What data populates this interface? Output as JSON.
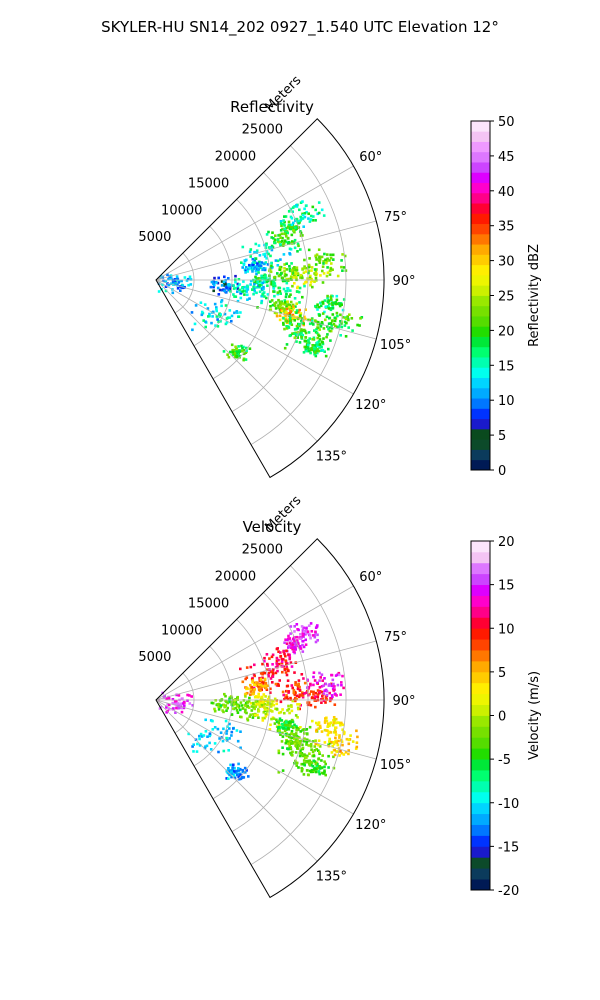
{
  "figure": {
    "suptitle": "SKYLER-HU  SN14_202  0927_1.540 UTC Elevation 12°"
  },
  "chart_data": [
    {
      "type": "heatmap",
      "subtype": "polar-sector",
      "title": "Reflectivity",
      "range_label": "Meters",
      "radial_ticks": [
        5000,
        10000,
        15000,
        20000,
        25000
      ],
      "angle_ticks": [
        "60°",
        "75°",
        "90°",
        "105°",
        "120°",
        "135°"
      ],
      "angle_tick_values": [
        60,
        75,
        90,
        105,
        120,
        135
      ],
      "sector_deg": [
        45,
        150
      ],
      "range_max": 30000,
      "grid": true,
      "colorbar": {
        "label": "Reflectivity dBZ",
        "min": 0,
        "max": 50,
        "ticks": [
          0,
          5,
          10,
          15,
          20,
          25,
          30,
          35,
          40,
          45,
          50
        ],
        "colors": [
          "#001a55",
          "#0b3b5c",
          "#0c4a2a",
          "#0a4a1e",
          "#1a1acc",
          "#0033ff",
          "#0077ff",
          "#00aaff",
          "#00d5ff",
          "#00ffee",
          "#00ffb0",
          "#00ff70",
          "#00e838",
          "#22dd00",
          "#55dd00",
          "#77e000",
          "#99e800",
          "#ccf000",
          "#eef500",
          "#ffee00",
          "#ffcc00",
          "#ffaa00",
          "#ff7700",
          "#ff4400",
          "#ff1a00",
          "#ff0033",
          "#ff0088",
          "#ff00cc",
          "#dd00ff",
          "#cc44ff",
          "#dd77ff",
          "#ee99ff",
          "#f4c4f4",
          "#fbe5fb"
        ]
      },
      "echo_cells": [
        {
          "az": 68,
          "r": 19000,
          "value": 20
        },
        {
          "az": 72,
          "r": 17500,
          "value": 20
        },
        {
          "az": 65,
          "r": 21000,
          "value": 16
        },
        {
          "az": 78,
          "r": 15000,
          "value": 14
        },
        {
          "az": 82,
          "r": 13000,
          "value": 12
        },
        {
          "az": 86,
          "r": 17000,
          "value": 22
        },
        {
          "az": 88,
          "r": 20000,
          "value": 25
        },
        {
          "az": 84,
          "r": 22000,
          "value": 22
        },
        {
          "az": 90,
          "r": 14000,
          "value": 18
        },
        {
          "az": 93,
          "r": 9000,
          "value": 9
        },
        {
          "az": 95,
          "r": 12000,
          "value": 14
        },
        {
          "az": 96,
          "r": 16000,
          "value": 18
        },
        {
          "az": 101,
          "r": 17000,
          "value": 22
        },
        {
          "az": 104,
          "r": 18500,
          "value": 30
        },
        {
          "az": 107,
          "r": 19500,
          "value": 20
        },
        {
          "az": 110,
          "r": 21000,
          "value": 20
        },
        {
          "az": 113,
          "r": 22500,
          "value": 18
        },
        {
          "az": 98,
          "r": 23000,
          "value": 18
        },
        {
          "az": 103,
          "r": 24500,
          "value": 20
        },
        {
          "az": 120,
          "r": 9000,
          "value": 14
        },
        {
          "az": 132,
          "r": 14000,
          "value": 20
        },
        {
          "az": 97,
          "r": 2500,
          "value": 12
        }
      ]
    },
    {
      "type": "heatmap",
      "subtype": "polar-sector",
      "title": "Velocity",
      "range_label": "Meters",
      "radial_ticks": [
        5000,
        10000,
        15000,
        20000,
        25000
      ],
      "angle_ticks": [
        "60°",
        "75°",
        "90°",
        "105°",
        "120°",
        "135°"
      ],
      "angle_tick_values": [
        60,
        75,
        90,
        105,
        120,
        135
      ],
      "sector_deg": [
        45,
        150
      ],
      "range_max": 30000,
      "grid": true,
      "colorbar": {
        "label": "Velocity (m/s)",
        "min": -20,
        "max": 20,
        "ticks": [
          -20,
          -15,
          -10,
          -5,
          0,
          5,
          10,
          15,
          20
        ],
        "colors": [
          "#001a55",
          "#0b3b5c",
          "#0c4a2a",
          "#1a1acc",
          "#0033ff",
          "#0077ff",
          "#00aaff",
          "#00d5ff",
          "#00ffee",
          "#00ffb0",
          "#00ff70",
          "#00e838",
          "#22dd00",
          "#55dd00",
          "#77e000",
          "#99e800",
          "#ccf000",
          "#eef500",
          "#ffee00",
          "#ffcc00",
          "#ffaa00",
          "#ff7700",
          "#ff4400",
          "#ff1a00",
          "#ff0033",
          "#ff0088",
          "#ff00cc",
          "#dd00ff",
          "#cc44ff",
          "#dd77ff",
          "#f4c4f4",
          "#fbe5fb"
        ]
      },
      "echo_cells": [
        {
          "az": 68,
          "r": 19500,
          "value": 14
        },
        {
          "az": 65,
          "r": 21500,
          "value": 15
        },
        {
          "az": 72,
          "r": 17500,
          "value": 11
        },
        {
          "az": 78,
          "r": 15000,
          "value": 10
        },
        {
          "az": 82,
          "r": 13000,
          "value": 6
        },
        {
          "az": 86,
          "r": 18000,
          "value": 9
        },
        {
          "az": 88,
          "r": 21000,
          "value": 10
        },
        {
          "az": 84,
          "r": 22500,
          "value": 14
        },
        {
          "az": 90,
          "r": 14000,
          "value": 2
        },
        {
          "az": 93,
          "r": 9000,
          "value": -3
        },
        {
          "az": 95,
          "r": 12000,
          "value": -2
        },
        {
          "az": 96,
          "r": 16000,
          "value": 1
        },
        {
          "az": 101,
          "r": 17000,
          "value": -5
        },
        {
          "az": 104,
          "r": 18500,
          "value": -3
        },
        {
          "az": 107,
          "r": 19500,
          "value": -2
        },
        {
          "az": 110,
          "r": 21000,
          "value": -3
        },
        {
          "az": 113,
          "r": 22500,
          "value": -4
        },
        {
          "az": 98,
          "r": 23000,
          "value": 3
        },
        {
          "az": 103,
          "r": 24500,
          "value": 4
        },
        {
          "az": 120,
          "r": 9000,
          "value": -11
        },
        {
          "az": 132,
          "r": 14000,
          "value": -12
        },
        {
          "az": 97,
          "r": 2500,
          "value": 15
        }
      ]
    }
  ]
}
